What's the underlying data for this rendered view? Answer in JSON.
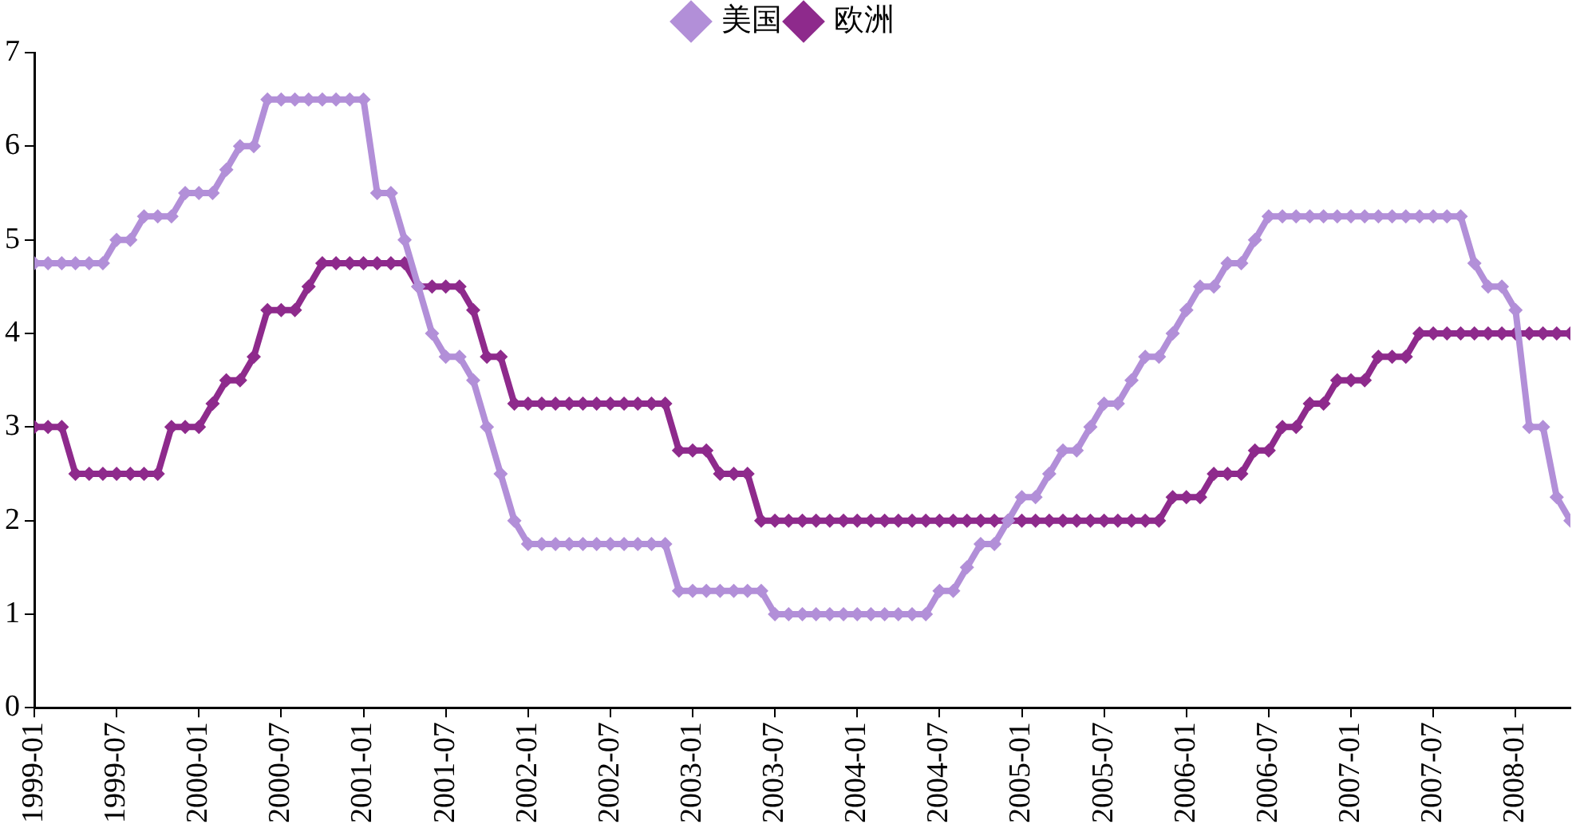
{
  "chart_data": {
    "type": "line",
    "x": [
      "1999-01",
      "1999-02",
      "1999-03",
      "1999-04",
      "1999-05",
      "1999-06",
      "1999-07",
      "1999-08",
      "1999-09",
      "1999-10",
      "1999-11",
      "1999-12",
      "2000-01",
      "2000-02",
      "2000-03",
      "2000-04",
      "2000-05",
      "2000-06",
      "2000-07",
      "2000-08",
      "2000-09",
      "2000-10",
      "2000-11",
      "2000-12",
      "2001-01",
      "2001-02",
      "2001-03",
      "2001-04",
      "2001-05",
      "2001-06",
      "2001-07",
      "2001-08",
      "2001-09",
      "2001-10",
      "2001-11",
      "2001-12",
      "2002-01",
      "2002-02",
      "2002-03",
      "2002-04",
      "2002-05",
      "2002-06",
      "2002-07",
      "2002-08",
      "2002-09",
      "2002-10",
      "2002-11",
      "2002-12",
      "2003-01",
      "2003-02",
      "2003-03",
      "2003-04",
      "2003-05",
      "2003-06",
      "2003-07",
      "2003-08",
      "2003-09",
      "2003-10",
      "2003-11",
      "2003-12",
      "2004-01",
      "2004-02",
      "2004-03",
      "2004-04",
      "2004-05",
      "2004-06",
      "2004-07",
      "2004-08",
      "2004-09",
      "2004-10",
      "2004-11",
      "2004-12",
      "2005-01",
      "2005-02",
      "2005-03",
      "2005-04",
      "2005-05",
      "2005-06",
      "2005-07",
      "2005-08",
      "2005-09",
      "2005-10",
      "2005-11",
      "2005-12",
      "2006-01",
      "2006-02",
      "2006-03",
      "2006-04",
      "2006-05",
      "2006-06",
      "2006-07",
      "2006-08",
      "2006-09",
      "2006-10",
      "2006-11",
      "2006-12",
      "2007-01",
      "2007-02",
      "2007-03",
      "2007-04",
      "2007-05",
      "2007-06",
      "2007-07",
      "2007-08",
      "2007-09",
      "2007-10",
      "2007-11",
      "2007-12",
      "2008-01",
      "2008-02",
      "2008-03",
      "2008-04",
      "2008-05"
    ],
    "series": [
      {
        "name": "美国",
        "color": "#b28fd8",
        "values": [
          4.75,
          4.75,
          4.75,
          4.75,
          4.75,
          4.75,
          5.0,
          5.0,
          5.25,
          5.25,
          5.25,
          5.5,
          5.5,
          5.5,
          5.75,
          6.0,
          6.0,
          6.5,
          6.5,
          6.5,
          6.5,
          6.5,
          6.5,
          6.5,
          6.5,
          5.5,
          5.5,
          5.0,
          4.5,
          4.0,
          3.75,
          3.75,
          3.5,
          3.0,
          2.5,
          2.0,
          1.75,
          1.75,
          1.75,
          1.75,
          1.75,
          1.75,
          1.75,
          1.75,
          1.75,
          1.75,
          1.75,
          1.25,
          1.25,
          1.25,
          1.25,
          1.25,
          1.25,
          1.25,
          1.0,
          1.0,
          1.0,
          1.0,
          1.0,
          1.0,
          1.0,
          1.0,
          1.0,
          1.0,
          1.0,
          1.0,
          1.25,
          1.25,
          1.5,
          1.75,
          1.75,
          2.0,
          2.25,
          2.25,
          2.5,
          2.75,
          2.75,
          3.0,
          3.25,
          3.25,
          3.5,
          3.75,
          3.75,
          4.0,
          4.25,
          4.5,
          4.5,
          4.75,
          4.75,
          5.0,
          5.25,
          5.25,
          5.25,
          5.25,
          5.25,
          5.25,
          5.25,
          5.25,
          5.25,
          5.25,
          5.25,
          5.25,
          5.25,
          5.25,
          5.25,
          4.75,
          4.5,
          4.5,
          4.25,
          3.0,
          3.0,
          2.25,
          2.0
        ]
      },
      {
        "name": "欧洲",
        "color": "#8e2a8c",
        "values": [
          3.0,
          3.0,
          3.0,
          2.5,
          2.5,
          2.5,
          2.5,
          2.5,
          2.5,
          2.5,
          3.0,
          3.0,
          3.0,
          3.25,
          3.5,
          3.5,
          3.75,
          4.25,
          4.25,
          4.25,
          4.5,
          4.75,
          4.75,
          4.75,
          4.75,
          4.75,
          4.75,
          4.75,
          4.5,
          4.5,
          4.5,
          4.5,
          4.25,
          3.75,
          3.75,
          3.25,
          3.25,
          3.25,
          3.25,
          3.25,
          3.25,
          3.25,
          3.25,
          3.25,
          3.25,
          3.25,
          3.25,
          2.75,
          2.75,
          2.75,
          2.5,
          2.5,
          2.5,
          2.0,
          2.0,
          2.0,
          2.0,
          2.0,
          2.0,
          2.0,
          2.0,
          2.0,
          2.0,
          2.0,
          2.0,
          2.0,
          2.0,
          2.0,
          2.0,
          2.0,
          2.0,
          2.0,
          2.0,
          2.0,
          2.0,
          2.0,
          2.0,
          2.0,
          2.0,
          2.0,
          2.0,
          2.0,
          2.0,
          2.25,
          2.25,
          2.25,
          2.5,
          2.5,
          2.5,
          2.75,
          2.75,
          3.0,
          3.0,
          3.25,
          3.25,
          3.5,
          3.5,
          3.5,
          3.75,
          3.75,
          3.75,
          4.0,
          4.0,
          4.0,
          4.0,
          4.0,
          4.0,
          4.0,
          4.0,
          4.0,
          4.0,
          4.0,
          4.0
        ]
      }
    ],
    "xlim": [
      "1999-01",
      "2008-05"
    ],
    "xticks": [
      "1999-01",
      "1999-07",
      "2000-01",
      "2000-07",
      "2001-01",
      "2001-07",
      "2002-01",
      "2002-07",
      "2003-01",
      "2003-07",
      "2004-01",
      "2004-07",
      "2005-01",
      "2005-07",
      "2006-01",
      "2006-07",
      "2007-01",
      "2007-07",
      "2008-01"
    ],
    "ylim": [
      0,
      7
    ],
    "yticks": [
      0,
      1,
      2,
      3,
      4,
      5,
      6,
      7
    ],
    "grid": false,
    "legend": "top",
    "marker": "diamond",
    "line_style": "solid"
  }
}
